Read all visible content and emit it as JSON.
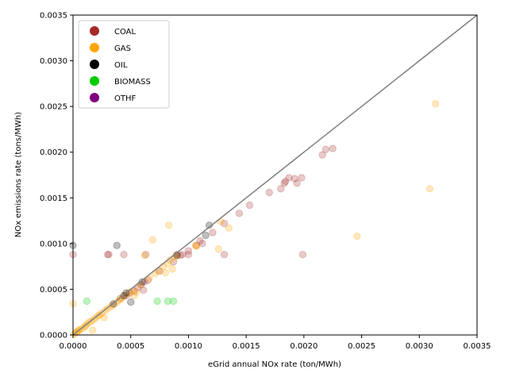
{
  "chart_data": {
    "type": "scatter",
    "xlabel": "eGrid annual NOx rate (ton/MWh)",
    "ylabel": "NOx emissions rate (tons/MWh)",
    "xlim": [
      0,
      0.0035
    ],
    "ylim": [
      0,
      0.0035
    ],
    "x_ticks": [
      "0.0000",
      "0.0005",
      "0.0010",
      "0.0015",
      "0.0020",
      "0.0025",
      "0.0030",
      "0.0035"
    ],
    "y_ticks": [
      "0.0000",
      "0.0005",
      "0.0010",
      "0.0015",
      "0.0020",
      "0.0025",
      "0.0030",
      "0.0035"
    ],
    "grid": false,
    "legend_position": "top-left",
    "reference_line": {
      "x": [
        0,
        0.0035
      ],
      "y": [
        0,
        0.0035
      ],
      "color": "#808080"
    },
    "series": [
      {
        "name": "COAL",
        "color": "#a52a2a",
        "points": [
          [
            0.0,
            0.00088
          ],
          [
            0.0003,
            0.00088
          ],
          [
            0.00031,
            0.00088
          ],
          [
            0.00044,
            0.00088
          ],
          [
            0.00041,
            0.0004
          ],
          [
            0.00046,
            0.00043
          ],
          [
            0.00049,
            0.00046
          ],
          [
            0.00053,
            0.00048
          ],
          [
            0.00056,
            0.00052
          ],
          [
            0.00059,
            0.00055
          ],
          [
            0.00061,
            0.00049
          ],
          [
            0.00062,
            0.00058
          ],
          [
            0.00063,
            0.00088
          ],
          [
            0.00065,
            0.0006
          ],
          [
            0.00075,
            0.0007
          ],
          [
            0.00087,
            0.0008
          ],
          [
            0.0009,
            0.00088
          ],
          [
            0.00093,
            0.00087
          ],
          [
            0.00095,
            0.00088
          ],
          [
            0.001,
            0.00088
          ],
          [
            0.001,
            0.00092
          ],
          [
            0.00107,
            0.00098
          ],
          [
            0.0011,
            0.00103
          ],
          [
            0.00112,
            0.001
          ],
          [
            0.00121,
            0.00112
          ],
          [
            0.00131,
            0.00122
          ],
          [
            0.00131,
            0.00088
          ],
          [
            0.00144,
            0.00133
          ],
          [
            0.00153,
            0.00142
          ],
          [
            0.0017,
            0.00156
          ],
          [
            0.0018,
            0.0016
          ],
          [
            0.00183,
            0.00166
          ],
          [
            0.00184,
            0.00168
          ],
          [
            0.00187,
            0.00172
          ],
          [
            0.00192,
            0.00171
          ],
          [
            0.00194,
            0.00166
          ],
          [
            0.00198,
            0.00172
          ],
          [
            0.00199,
            0.00088
          ],
          [
            0.00216,
            0.00197
          ],
          [
            0.00219,
            0.00203
          ],
          [
            0.00225,
            0.00204
          ]
        ]
      },
      {
        "name": "GAS",
        "color": "#ffa500",
        "points": [
          [
            0.0,
            0.00034
          ],
          [
            1e-05,
            1e-05
          ],
          [
            2e-05,
            2e-05
          ],
          [
            3e-05,
            3e-05
          ],
          [
            4e-05,
            4e-05
          ],
          [
            5e-05,
            5e-05
          ],
          [
            6e-05,
            6e-05
          ],
          [
            8e-05,
            7e-05
          ],
          [
            0.0001,
            9e-05
          ],
          [
            0.00011,
            0.0001
          ],
          [
            0.00012,
            0.00012
          ],
          [
            0.00014,
            0.00014
          ],
          [
            0.00016,
            0.00015
          ],
          [
            0.00017,
            5e-05
          ],
          [
            0.00018,
            0.00017
          ],
          [
            0.0002,
            0.00019
          ],
          [
            0.00022,
            0.00021
          ],
          [
            0.00023,
            0.00022
          ],
          [
            0.00025,
            0.00024
          ],
          [
            0.00027,
            0.00019
          ],
          [
            0.00028,
            0.00027
          ],
          [
            0.0003,
            0.00029
          ],
          [
            0.00033,
            0.00031
          ],
          [
            0.00035,
            0.00033
          ],
          [
            0.00038,
            0.00036
          ],
          [
            0.0004,
            0.00038
          ],
          [
            0.00042,
            0.0004
          ],
          [
            0.00045,
            0.00043
          ],
          [
            0.00048,
            0.00046
          ],
          [
            0.00051,
            0.00048
          ],
          [
            0.00053,
            0.00043
          ],
          [
            0.00055,
            0.00047
          ],
          [
            0.00058,
            0.00055
          ],
          [
            0.00062,
            0.00087
          ],
          [
            0.00066,
            0.00062
          ],
          [
            0.00069,
            0.00104
          ],
          [
            0.00071,
            0.00067
          ],
          [
            0.00074,
            0.0007
          ],
          [
            0.00078,
            0.00075
          ],
          [
            0.0008,
            0.00068
          ],
          [
            0.00082,
            0.00078
          ],
          [
            0.00083,
            0.0012
          ],
          [
            0.00084,
            0.00082
          ],
          [
            0.00086,
            0.00072
          ],
          [
            0.00088,
            0.00085
          ],
          [
            0.0009,
            0.00087
          ],
          [
            0.00106,
            0.00098
          ],
          [
            0.00107,
            0.00097
          ],
          [
            0.00126,
            0.00094
          ],
          [
            0.00128,
            0.00124
          ],
          [
            0.00135,
            0.00117
          ],
          [
            0.00246,
            0.00108
          ],
          [
            0.00309,
            0.0016
          ],
          [
            0.00314,
            0.00253
          ]
        ]
      },
      {
        "name": "OIL",
        "color": "#000000",
        "points": [
          [
            0.0,
            0.00098
          ],
          [
            0.00035,
            0.00034
          ],
          [
            0.00038,
            0.00098
          ],
          [
            0.00044,
            0.00043
          ],
          [
            0.00046,
            0.00046
          ],
          [
            0.0005,
            0.00036
          ],
          [
            0.0006,
            0.00058
          ],
          [
            0.0009,
            0.00087
          ],
          [
            0.00115,
            0.00109
          ],
          [
            0.00118,
            0.0012
          ]
        ]
      },
      {
        "name": "BIOMASS",
        "color": "#00cc00",
        "points": [
          [
            0.00012,
            0.00037
          ],
          [
            0.00073,
            0.00037
          ],
          [
            0.00082,
            0.00037
          ],
          [
            0.00087,
            0.00037
          ]
        ]
      },
      {
        "name": "OTHF",
        "color": "#800080",
        "points": []
      }
    ]
  }
}
